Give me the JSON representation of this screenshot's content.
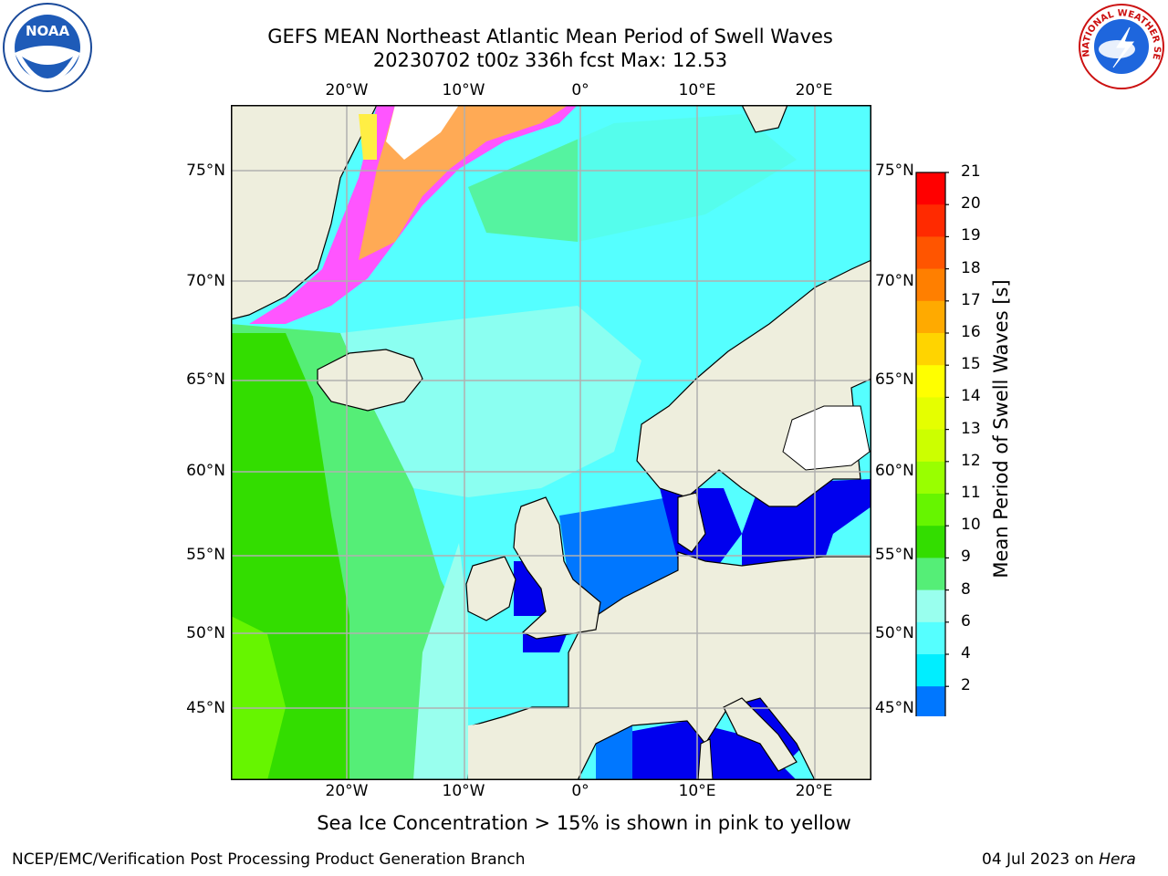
{
  "title": {
    "line1": "GEFS MEAN Northeast Atlantic Mean Period of Swell Waves",
    "line2": "20230702 t00z 336h fcst   Max: 12.53"
  },
  "logos": {
    "noara": {
      "text": "NOAA",
      "icon": "noaa-logo-icon"
    },
    "nws": {
      "text": "NATIONAL WEATHER SERVICE",
      "icon": "nws-logo-icon"
    }
  },
  "axes": {
    "lon_labels": [
      "20°W",
      "10°W",
      "0°",
      "10°E",
      "20°E"
    ],
    "lat_labels": [
      "75°N",
      "70°N",
      "65°N",
      "60°N",
      "55°N",
      "50°N",
      "45°N"
    ]
  },
  "colorbar": {
    "label": "Mean Period of Swell Waves [s]",
    "ticks": [
      "21",
      "20",
      "19",
      "18",
      "17",
      "16",
      "15",
      "14",
      "13",
      "12",
      "11",
      "10",
      "9",
      "8",
      "6",
      "4",
      "2"
    ],
    "colors": [
      "#ff0000",
      "#ff2a00",
      "#ff5500",
      "#ff7f00",
      "#ffaa00",
      "#ffd400",
      "#ffff00",
      "#e5ff00",
      "#ccff00",
      "#99ff00",
      "#66f500",
      "#33dd00",
      "#55ee77",
      "#99ffee",
      "#55ffff",
      "#00eeff",
      "#0077ff"
    ],
    "under_color": "#0000ee"
  },
  "map_colors": {
    "land": "#eeeedd",
    "period_2_4": "#0000ee",
    "period_4_6": "#0077ff",
    "period_6_8": "#00eeff",
    "period_8_9": "#55ffff",
    "period_9_10": "#99ffee",
    "period_10_11": "#55ee77",
    "period_11_12": "#33dd00",
    "period_12_13": "#66f500",
    "ice_pink": "#ff55ff",
    "ice_orange": "#ffaa55",
    "ice_yellow": "#ffee44"
  },
  "caption": "Sea Ice Concentration > 15% is shown in pink to yellow",
  "footer": {
    "left": "NCEP/EMC/Verification Post Processing Product Generation Branch",
    "right_date": "04 Jul 2023 on ",
    "right_machine": "Hera"
  }
}
